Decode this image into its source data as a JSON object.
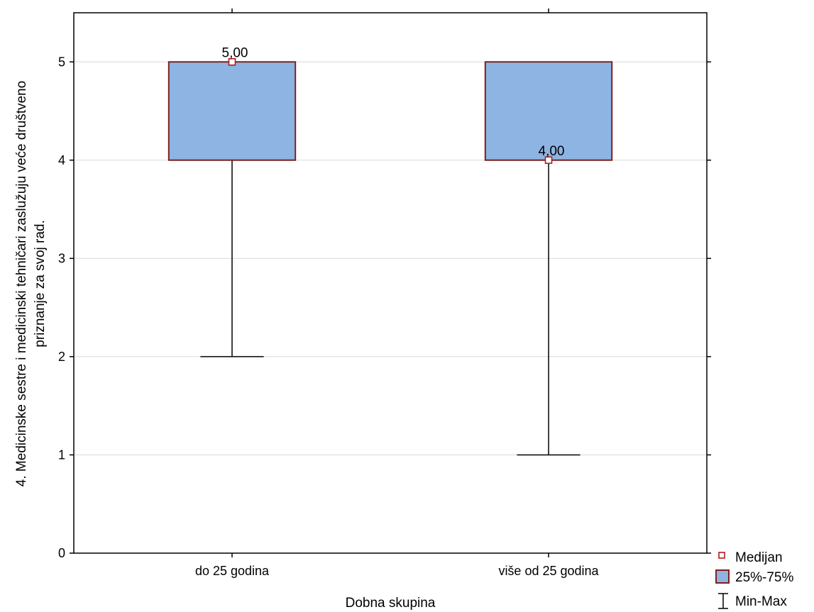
{
  "chart_data": {
    "type": "boxplot",
    "title": "",
    "xlabel": "Dobna skupina",
    "ylabel_lines": [
      "4. Medicinske sestre i medicinski tehničari zaslužuju veće društveno",
      "priznanje za svoj rad."
    ],
    "ylim": [
      0,
      5.5
    ],
    "yticks": [
      0,
      1,
      2,
      3,
      4,
      5
    ],
    "grid": "horizontal",
    "legend_position": "bottom-right",
    "categories": [
      "do 25 godina",
      "više od 25 godina"
    ],
    "boxes": [
      {
        "category": "do 25 godina",
        "min": 2,
        "q1": 4,
        "median": 5,
        "q3": 5,
        "max": 5,
        "median_label": "5,00"
      },
      {
        "category": "više od 25 godina",
        "min": 1,
        "q1": 4,
        "median": 4,
        "q3": 5,
        "max": 5,
        "median_label": "4,00"
      }
    ],
    "legend": [
      {
        "key": "median",
        "label": "Medijan"
      },
      {
        "key": "box",
        "label": "25%-75%"
      },
      {
        "key": "whisker",
        "label": "Min-Max"
      }
    ],
    "colors": {
      "box_fill": "#8DB4E2",
      "box_stroke": "#7F1F1F",
      "median_marker": "#B01C1C",
      "whisker": "#000000",
      "grid": "#D9D9D9"
    }
  }
}
